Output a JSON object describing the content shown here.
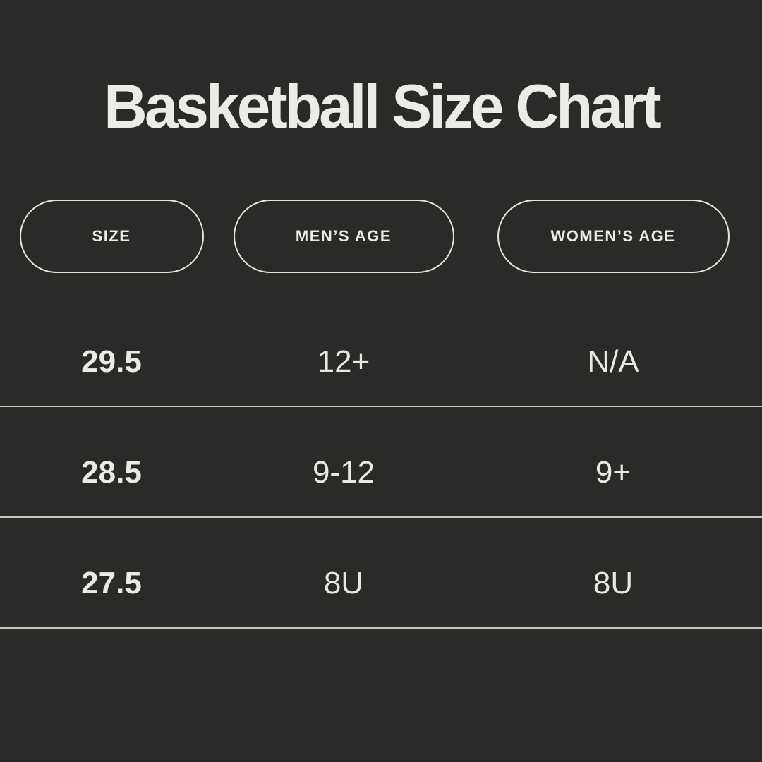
{
  "chart_data": {
    "type": "table",
    "title": "Basketball Size Chart",
    "columns": [
      "SIZE",
      "MEN’S AGE",
      "WOMEN’S AGE"
    ],
    "rows": [
      [
        "29.5",
        "12+",
        "N/A"
      ],
      [
        "28.5",
        "9-12",
        "9+"
      ],
      [
        "27.5",
        "8U",
        "8U"
      ]
    ]
  },
  "colors": {
    "background": "#2A2A28",
    "text": "#E9E7E1",
    "title_text": "#EDEBE5",
    "pill_border": "#E6E4DE",
    "divider": "#C9C7C1"
  }
}
